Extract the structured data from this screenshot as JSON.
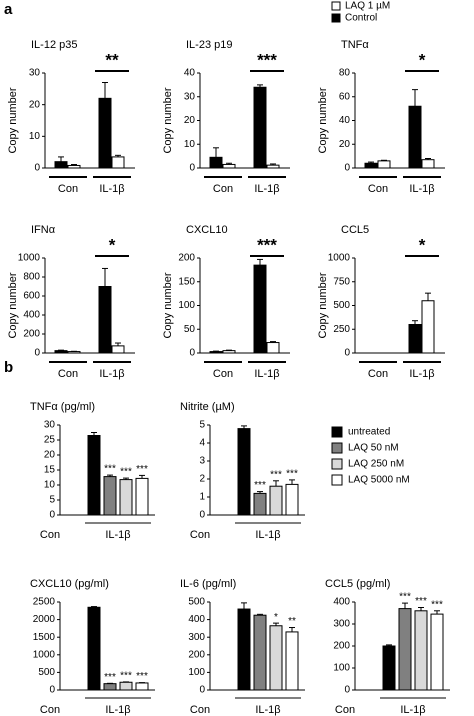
{
  "panel_labels": [
    "a",
    "b"
  ],
  "chart_data": [
    {
      "type": "bar",
      "title": "IL-12 p35",
      "ylabel": "Copy number",
      "categories": [
        "Con",
        "IL-1β"
      ],
      "ylim": [
        0,
        30
      ],
      "yticks": [
        0,
        10,
        20,
        30
      ],
      "significance": "**",
      "series": [
        {
          "name": "Control",
          "color": "#000000",
          "values": [
            2,
            22
          ],
          "errors": [
            1.5,
            5
          ]
        },
        {
          "name": "LAQ 1 µM",
          "color": "#ffffff",
          "values": [
            0.8,
            3.5
          ],
          "errors": [
            0.3,
            0.5
          ]
        }
      ]
    },
    {
      "type": "bar",
      "title": "IL-23 p19",
      "ylabel": "Copy number",
      "categories": [
        "Con",
        "IL-1β"
      ],
      "ylim": [
        0,
        40
      ],
      "yticks": [
        0,
        10,
        20,
        30,
        40
      ],
      "significance": "***",
      "series": [
        {
          "color": "#000000",
          "values": [
            4.5,
            34
          ],
          "errors": [
            4,
            1
          ]
        },
        {
          "color": "#ffffff",
          "values": [
            1.5,
            1.2
          ],
          "errors": [
            0.5,
            0.5
          ]
        }
      ]
    },
    {
      "type": "bar",
      "title": "TNFα",
      "ylabel": "Copy number",
      "categories": [
        "Con",
        "IL-1β"
      ],
      "ylim": [
        0,
        80
      ],
      "yticks": [
        0,
        20,
        40,
        60,
        80
      ],
      "significance": "*",
      "series": [
        {
          "color": "#000000",
          "values": [
            4,
            52
          ],
          "errors": [
            1,
            14
          ]
        },
        {
          "color": "#ffffff",
          "values": [
            6,
            7
          ],
          "errors": [
            0.5,
            1
          ]
        }
      ]
    },
    {
      "type": "bar",
      "title": "IFNα",
      "ylabel": "Copy number",
      "categories": [
        "Con",
        "IL-1β"
      ],
      "ylim": [
        0,
        1000
      ],
      "yticks": [
        0,
        200,
        400,
        600,
        800,
        1000
      ],
      "significance": "*",
      "series": [
        {
          "color": "#000000",
          "values": [
            25,
            700
          ],
          "errors": [
            5,
            190
          ]
        },
        {
          "color": "#ffffff",
          "values": [
            15,
            75
          ],
          "errors": [
            3,
            30
          ]
        }
      ]
    },
    {
      "type": "bar",
      "title": "CXCL10",
      "ylabel": "Copy number",
      "categories": [
        "Con",
        "IL-1β"
      ],
      "ylim": [
        0,
        200
      ],
      "yticks": [
        0,
        50,
        100,
        150,
        200
      ],
      "significance": "***",
      "series": [
        {
          "color": "#000000",
          "values": [
            3,
            185
          ],
          "errors": [
            1,
            12
          ]
        },
        {
          "color": "#ffffff",
          "values": [
            5,
            22
          ],
          "errors": [
            1,
            2
          ]
        }
      ]
    },
    {
      "type": "bar",
      "title": "CCL5",
      "ylabel": "Copy number",
      "categories": [
        "Con",
        "IL-1β"
      ],
      "ylim": [
        0,
        1000
      ],
      "yticks": [
        0,
        250,
        500,
        750,
        1000
      ],
      "significance": "*",
      "series": [
        {
          "color": "#000000",
          "values": [
            0,
            300
          ],
          "errors": [
            0,
            40
          ]
        },
        {
          "color": "#ffffff",
          "values": [
            0,
            550
          ],
          "errors": [
            0,
            80
          ]
        }
      ]
    },
    {
      "type": "bar",
      "title": "TNFα (pg/ml)",
      "categories": [
        "Con",
        "IL-1β"
      ],
      "ylim": [
        0,
        30
      ],
      "yticks": [
        0,
        5,
        10,
        15,
        20,
        25,
        30
      ],
      "series": [
        {
          "name": "untreated",
          "color": "#000000",
          "values": [
            null,
            26.5
          ],
          "errors": [
            null,
            1
          ]
        },
        {
          "name": "LAQ 50 nM",
          "color": "#808080",
          "values": [
            null,
            12.8
          ],
          "errors": [
            null,
            0.5
          ],
          "annotations": [
            null,
            "***"
          ]
        },
        {
          "name": "LAQ 250 nM",
          "color": "#d9d9d9",
          "values": [
            null,
            11.8
          ],
          "errors": [
            null,
            0.5
          ],
          "annotations": [
            null,
            "***"
          ]
        },
        {
          "name": "LAQ 5000 nM",
          "color": "#ffffff",
          "values": [
            null,
            12.2
          ],
          "errors": [
            null,
            1
          ],
          "annotations": [
            null,
            "***"
          ]
        }
      ]
    },
    {
      "type": "bar",
      "title": "Nitrite (µM)",
      "categories": [
        "Con",
        "IL-1β"
      ],
      "ylim": [
        0,
        5
      ],
      "yticks": [
        0,
        1,
        2,
        3,
        4,
        5
      ],
      "series": [
        {
          "color": "#000000",
          "values": [
            null,
            4.8
          ],
          "errors": [
            null,
            0.15
          ]
        },
        {
          "color": "#808080",
          "values": [
            null,
            1.2
          ],
          "errors": [
            null,
            0.1
          ],
          "annotations": [
            null,
            "***"
          ]
        },
        {
          "color": "#d9d9d9",
          "values": [
            null,
            1.6
          ],
          "errors": [
            null,
            0.3
          ],
          "annotations": [
            null,
            "***"
          ]
        },
        {
          "color": "#ffffff",
          "values": [
            null,
            1.7
          ],
          "errors": [
            null,
            0.25
          ],
          "annotations": [
            null,
            "***"
          ]
        }
      ]
    },
    {
      "type": "bar",
      "title": "CXCL10 (pg/ml)",
      "categories": [
        "Con",
        "IL-1β"
      ],
      "ylim": [
        0,
        2500
      ],
      "yticks": [
        0,
        500,
        1000,
        1500,
        2000,
        2500
      ],
      "series": [
        {
          "color": "#000000",
          "values": [
            null,
            2350
          ],
          "errors": [
            null,
            20
          ]
        },
        {
          "color": "#808080",
          "values": [
            null,
            180
          ],
          "errors": [
            null,
            10
          ],
          "annotations": [
            null,
            "***"
          ]
        },
        {
          "color": "#d9d9d9",
          "values": [
            null,
            220
          ],
          "errors": [
            null,
            10
          ],
          "annotations": [
            null,
            "***"
          ]
        },
        {
          "color": "#ffffff",
          "values": [
            null,
            200
          ],
          "errors": [
            null,
            10
          ],
          "annotations": [
            null,
            "***"
          ]
        }
      ]
    },
    {
      "type": "bar",
      "title": "IL-6 (pg/ml)",
      "categories": [
        "Con",
        "IL-1β"
      ],
      "ylim": [
        0,
        500
      ],
      "yticks": [
        0,
        100,
        200,
        300,
        400,
        500
      ],
      "series": [
        {
          "color": "#000000",
          "values": [
            null,
            460
          ],
          "errors": [
            null,
            35
          ]
        },
        {
          "color": "#808080",
          "values": [
            null,
            425
          ],
          "errors": [
            null,
            5
          ]
        },
        {
          "color": "#d9d9d9",
          "values": [
            null,
            365
          ],
          "errors": [
            null,
            15
          ],
          "annotations": [
            null,
            "*"
          ]
        },
        {
          "color": "#ffffff",
          "values": [
            null,
            330
          ],
          "errors": [
            null,
            25
          ],
          "annotations": [
            null,
            "**"
          ]
        }
      ]
    },
    {
      "type": "bar",
      "title": "CCL5 (pg/ml)",
      "categories": [
        "Con",
        "IL-1β"
      ],
      "ylim": [
        0,
        400
      ],
      "yticks": [
        0,
        100,
        200,
        300,
        400
      ],
      "series": [
        {
          "color": "#000000",
          "values": [
            null,
            200
          ],
          "errors": [
            null,
            5
          ]
        },
        {
          "color": "#808080",
          "values": [
            null,
            370
          ],
          "errors": [
            null,
            25
          ],
          "annotations": [
            null,
            "***"
          ]
        },
        {
          "color": "#d9d9d9",
          "values": [
            null,
            360
          ],
          "errors": [
            null,
            15
          ],
          "annotations": [
            null,
            "***"
          ]
        },
        {
          "color": "#ffffff",
          "values": [
            null,
            345
          ],
          "errors": [
            null,
            15
          ],
          "annotations": [
            null,
            "***"
          ]
        }
      ]
    }
  ]
}
